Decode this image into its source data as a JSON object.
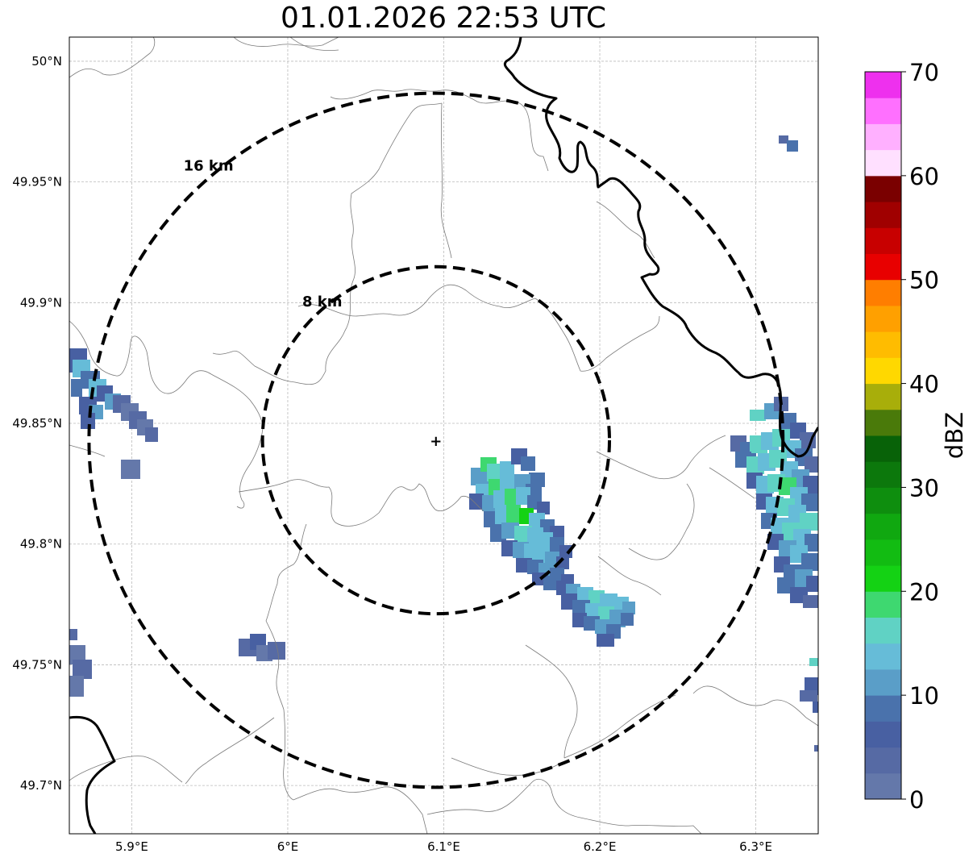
{
  "title": "01.01.2026 22:53 UTC",
  "map": {
    "lon_range": [
      5.86,
      6.34
    ],
    "lat_range": [
      49.68,
      50.01
    ],
    "lon_ticks": [
      {
        "value": 5.9,
        "label": "5.9°E"
      },
      {
        "value": 6.0,
        "label": "6°E"
      },
      {
        "value": 6.1,
        "label": "6.1°E"
      },
      {
        "value": 6.2,
        "label": "6.2°E"
      },
      {
        "value": 6.3,
        "label": "6.3°E"
      }
    ],
    "lat_ticks": [
      {
        "value": 50.0,
        "label": "50°N"
      },
      {
        "value": 49.95,
        "label": "49.95°N"
      },
      {
        "value": 49.9,
        "label": "49.9°N"
      },
      {
        "value": 49.85,
        "label": "49.85°N"
      },
      {
        "value": 49.8,
        "label": "49.8°N"
      },
      {
        "value": 49.75,
        "label": "49.75°N"
      },
      {
        "value": 49.7,
        "label": "49.7°N"
      }
    ],
    "grid": true,
    "radar_site": {
      "lon": 6.095,
      "lat": 49.843
    },
    "range_rings": [
      {
        "radius_km": 8,
        "label": "8 km"
      },
      {
        "radius_km": 16,
        "label": "16 km"
      }
    ]
  },
  "colorbar": {
    "label": "dBZ",
    "min": 0,
    "max": 70,
    "step": 2.5,
    "tick_labels": [
      "0",
      "10",
      "20",
      "30",
      "40",
      "50",
      "60",
      "70"
    ],
    "colors": [
      "#6478aa",
      "#566aa4",
      "#4860a2",
      "#4a72ac",
      "#5a9ec8",
      "#66bcd8",
      "#60d2c4",
      "#3ed870",
      "#14d214",
      "#12bc12",
      "#10a810",
      "#0e8e0e",
      "#0c780c",
      "#086208",
      "#4a7a0a",
      "#a8ae0a",
      "#ffd800",
      "#ffbc00",
      "#ffa000",
      "#ff7e00",
      "#e80000",
      "#c80000",
      "#a00000",
      "#7a0000",
      "#ffe0ff",
      "#ffb0ff",
      "#ff70ff",
      "#ee30ee"
    ]
  }
}
